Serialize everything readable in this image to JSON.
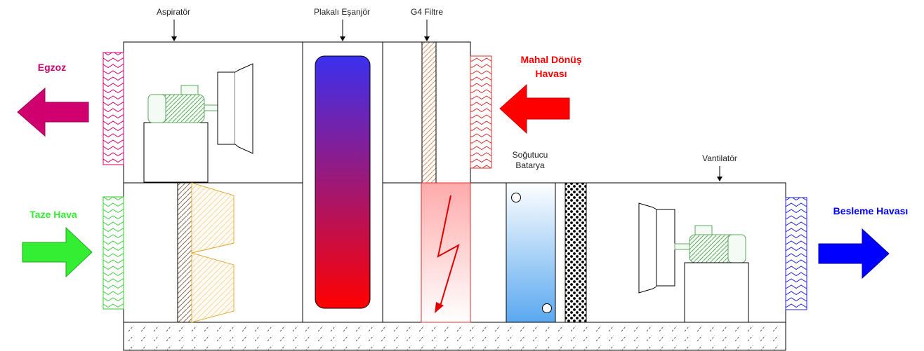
{
  "labels": {
    "exhaust": "Egzoz",
    "fresh_air": "Taze Hava",
    "return_air_line1": "Mahal Dönüş",
    "return_air_line2": "Havası",
    "supply_air": "Besleme Havası",
    "exhaust_fan": "Aspiratör",
    "plate_exchanger": "Plakalı Eşanjör",
    "g4_filter": "G4 Filtre",
    "cooling_coil_line1": "Soğutucu",
    "cooling_coil_line2": "Batarya",
    "supply_fan": "Vantilatör"
  },
  "colors": {
    "exhaust": "#d0006f",
    "fresh_air": "#33ee33",
    "return_air": "#ff0000",
    "supply_air": "#0000ff",
    "exchanger_top": "#3b30ee",
    "exchanger_bottom": "#ff0000",
    "filter_pleats": "#d09060",
    "bag_filter": "#e0b040",
    "heater_stroke": "#e03030",
    "motor_green": "#5fa85f",
    "coil_top": "#ffffff",
    "coil_bottom": "#5aa8f0"
  },
  "icons": {
    "exhaust_arrow": "arrow-left-icon",
    "fresh_arrow": "arrow-right-icon",
    "return_arrow": "arrow-left-icon",
    "supply_arrow": "arrow-right-icon",
    "heater_symbol": "lightning-bolt-icon"
  }
}
